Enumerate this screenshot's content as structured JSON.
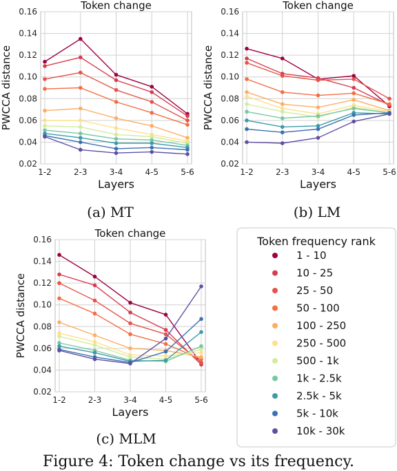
{
  "caption": "Figure 4: Token change vs its frequency.",
  "legend": {
    "title": "Token frequency rank",
    "entries": [
      "1 - 10",
      "10 - 25",
      "25 - 50",
      "50 - 100",
      "100 - 250",
      "250 - 500",
      "500 - 1k",
      "1k - 2.5k",
      "2.5k - 5k",
      "5k - 10k",
      "10k - 30k"
    ],
    "colors": [
      "#9e0142",
      "#d53e4f",
      "#e4534a",
      "#f46d43",
      "#fdae61",
      "#fee08b",
      "#d4ec9b",
      "#75c8a3",
      "#3c9aa8",
      "#3a72b0",
      "#5e4fa2"
    ]
  },
  "chart_data": [
    {
      "type": "line",
      "title": "Token change",
      "panel_label": "(a) MT",
      "xlabel": "Layers",
      "ylabel": "PWCCA distance",
      "categories": [
        "1-2",
        "2-3",
        "3-4",
        "4-5",
        "5-6"
      ],
      "ylim": [
        0.02,
        0.16
      ],
      "yticks": [
        "0.02",
        "0.04",
        "0.06",
        "0.08",
        "0.10",
        "0.12",
        "0.14",
        "0.16"
      ],
      "grid": true,
      "series": [
        {
          "name": "1 - 10",
          "values": [
            0.114,
            0.135,
            0.102,
            0.091,
            0.066
          ]
        },
        {
          "name": "10 - 25",
          "values": [
            0.11,
            0.118,
            0.097,
            0.086,
            0.064
          ]
        },
        {
          "name": "25 - 50",
          "values": [
            0.098,
            0.104,
            0.088,
            0.077,
            0.06
          ]
        },
        {
          "name": "50 - 100",
          "values": [
            0.089,
            0.09,
            0.077,
            0.067,
            0.056
          ]
        },
        {
          "name": "100 - 250",
          "values": [
            0.069,
            0.071,
            0.062,
            0.055,
            0.044
          ]
        },
        {
          "name": "250 - 500",
          "values": [
            0.06,
            0.06,
            0.053,
            0.047,
            0.041
          ]
        },
        {
          "name": "500 - 1k",
          "values": [
            0.055,
            0.054,
            0.047,
            0.045,
            0.039
          ]
        },
        {
          "name": "1k - 2.5k",
          "values": [
            0.051,
            0.048,
            0.043,
            0.042,
            0.037
          ]
        },
        {
          "name": "2.5k - 5k",
          "values": [
            0.048,
            0.044,
            0.039,
            0.039,
            0.035
          ]
        },
        {
          "name": "5k - 10k",
          "values": [
            0.046,
            0.04,
            0.034,
            0.035,
            0.033
          ]
        },
        {
          "name": "10k - 30k",
          "values": [
            0.045,
            0.033,
            0.03,
            0.031,
            0.029
          ]
        }
      ]
    },
    {
      "type": "line",
      "title": "Token change",
      "panel_label": "(b) LM",
      "xlabel": "Layers",
      "ylabel": "PWCCA distance",
      "categories": [
        "1-2",
        "2-3",
        "3-4",
        "4-5",
        "5-6"
      ],
      "ylim": [
        0.02,
        0.16
      ],
      "yticks": [
        "0.02",
        "0.04",
        "0.06",
        "0.08",
        "0.10",
        "0.12",
        "0.14",
        "0.16"
      ],
      "grid": true,
      "series": [
        {
          "name": "1 - 10",
          "values": [
            0.126,
            0.117,
            0.098,
            0.101,
            0.073
          ]
        },
        {
          "name": "10 - 25",
          "values": [
            0.117,
            0.103,
            0.099,
            0.09,
            0.074
          ]
        },
        {
          "name": "25 - 50",
          "values": [
            0.113,
            0.101,
            0.097,
            0.098,
            0.08
          ]
        },
        {
          "name": "50 - 100",
          "values": [
            0.098,
            0.086,
            0.083,
            0.085,
            0.075
          ]
        },
        {
          "name": "100 - 250",
          "values": [
            0.086,
            0.075,
            0.072,
            0.079,
            0.069
          ]
        },
        {
          "name": "250 - 500",
          "values": [
            0.082,
            0.071,
            0.066,
            0.074,
            0.068
          ]
        },
        {
          "name": "500 - 1k",
          "values": [
            0.075,
            0.068,
            0.063,
            0.072,
            0.067
          ]
        },
        {
          "name": "1k - 2.5k",
          "values": [
            0.068,
            0.062,
            0.064,
            0.071,
            0.067
          ]
        },
        {
          "name": "2.5k - 5k",
          "values": [
            0.06,
            0.054,
            0.055,
            0.067,
            0.066
          ]
        },
        {
          "name": "5k - 10k",
          "values": [
            0.052,
            0.049,
            0.052,
            0.065,
            0.067
          ]
        },
        {
          "name": "10k - 30k",
          "values": [
            0.04,
            0.039,
            0.044,
            0.059,
            0.066
          ]
        }
      ]
    },
    {
      "type": "line",
      "title": "Token change",
      "panel_label": "(c) MLM",
      "xlabel": "Layers",
      "ylabel": "PWCCA distance",
      "categories": [
        "1-2",
        "2-3",
        "3-4",
        "4-5",
        "5-6"
      ],
      "ylim": [
        0.02,
        0.16
      ],
      "yticks": [
        "0.02",
        "0.04",
        "0.06",
        "0.08",
        "0.10",
        "0.12",
        "0.14",
        "0.16"
      ],
      "grid": true,
      "series": [
        {
          "name": "1 - 10",
          "values": [
            0.146,
            0.126,
            0.102,
            0.091,
            0.046
          ]
        },
        {
          "name": "10 - 25",
          "values": [
            0.128,
            0.118,
            0.093,
            0.077,
            0.045
          ]
        },
        {
          "name": "25 - 50",
          "values": [
            0.12,
            0.104,
            0.083,
            0.073,
            0.047
          ]
        },
        {
          "name": "50 - 100",
          "values": [
            0.106,
            0.092,
            0.073,
            0.064,
            0.05
          ]
        },
        {
          "name": "100 - 250",
          "values": [
            0.084,
            0.072,
            0.06,
            0.058,
            0.052
          ]
        },
        {
          "name": "250 - 500",
          "values": [
            0.074,
            0.066,
            0.054,
            0.053,
            0.056
          ]
        },
        {
          "name": "500 - 1k",
          "values": [
            0.071,
            0.063,
            0.052,
            0.05,
            0.059
          ]
        },
        {
          "name": "1k - 2.5k",
          "values": [
            0.065,
            0.058,
            0.049,
            0.048,
            0.062
          ]
        },
        {
          "name": "2.5k - 5k",
          "values": [
            0.062,
            0.056,
            0.048,
            0.049,
            0.075
          ]
        },
        {
          "name": "5k - 10k",
          "values": [
            0.059,
            0.052,
            0.047,
            0.057,
            0.087
          ]
        },
        {
          "name": "10k - 30k",
          "values": [
            0.058,
            0.05,
            0.046,
            0.069,
            0.117
          ]
        }
      ]
    }
  ]
}
